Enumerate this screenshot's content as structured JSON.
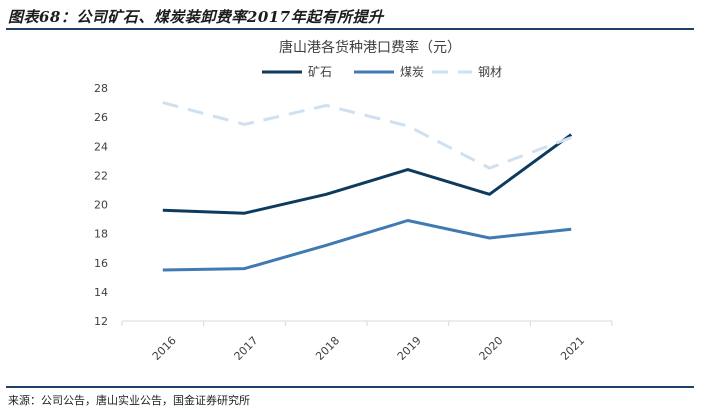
{
  "figure": {
    "title": "图表68：公司矿石、煤炭装卸费率2017年起有所提升",
    "source": "来源：公司公告，唐山实业公告，国金证券研究所"
  },
  "chart_data": {
    "type": "line",
    "title": "唐山港各货种港口费率（元）",
    "categories": [
      "2016",
      "2017",
      "2018",
      "2019",
      "2020",
      "2021"
    ],
    "ylim": [
      12,
      28
    ],
    "yticks": [
      12,
      14,
      16,
      18,
      20,
      22,
      24,
      26,
      28
    ],
    "grid": false,
    "legend_position": "top-center",
    "xlabel": "",
    "ylabel": "",
    "series": [
      {
        "name": "矿石",
        "values": [
          19.6,
          19.4,
          20.7,
          22.4,
          20.7,
          24.8
        ],
        "color": "#0d3b5e",
        "dashed": false
      },
      {
        "name": "煤炭",
        "values": [
          15.5,
          15.6,
          17.2,
          18.9,
          17.7,
          18.3
        ],
        "color": "#3f7ab3",
        "dashed": false
      },
      {
        "name": "钢材",
        "values": [
          27.0,
          25.5,
          26.8,
          25.4,
          22.5,
          24.6
        ],
        "color": "#cfe0f0",
        "dashed": true
      }
    ]
  }
}
